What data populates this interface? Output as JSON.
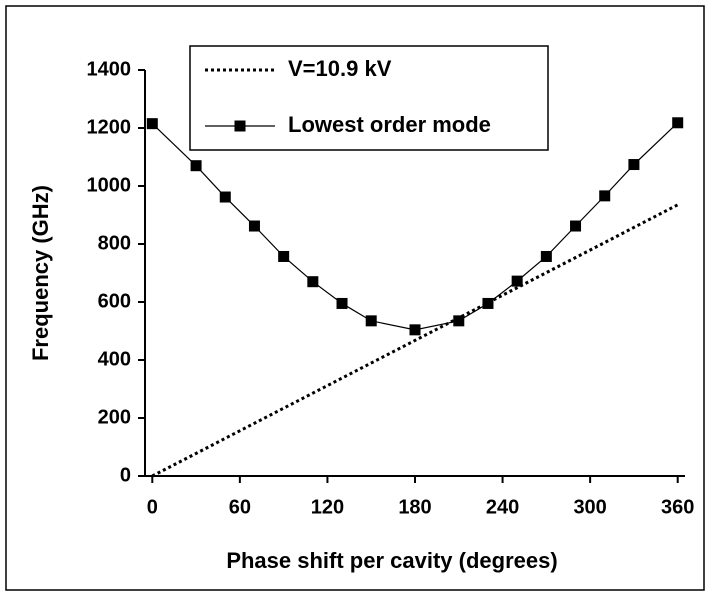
{
  "chart_data": {
    "type": "line",
    "x_label": "Phase shift per cavity (degrees)",
    "y_label": "Frequency (GHz)",
    "xlim": [
      -5,
      365
    ],
    "xticks": [
      0,
      60,
      120,
      180,
      240,
      300,
      360
    ],
    "ylim": [
      0,
      1400
    ],
    "yticks": [
      0,
      200,
      400,
      600,
      800,
      1000,
      1200,
      1400
    ],
    "series": [
      {
        "name": "V=10.9 kV",
        "color": "#000000",
        "style": "dotted",
        "marker": "none",
        "x": [
          0,
          360
        ],
        "values": [
          0,
          935
        ]
      },
      {
        "name": "Lowest order mode",
        "color": "#000000",
        "style": "solid",
        "marker": "square",
        "x": [
          0,
          30,
          50,
          70,
          90,
          110,
          130,
          150,
          180,
          210,
          230,
          250,
          270,
          290,
          310,
          330,
          360
        ],
        "values": [
          1215,
          1070,
          962,
          862,
          757,
          670,
          595,
          535,
          504,
          535,
          595,
          672,
          757,
          862,
          966,
          1074,
          1218
        ]
      }
    ]
  }
}
